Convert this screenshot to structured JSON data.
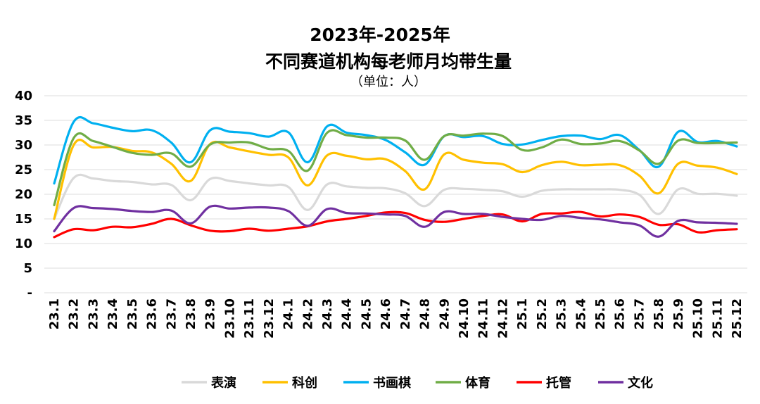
{
  "chart_data": {
    "type": "line",
    "title": "2023年-2025年",
    "title_line2": "不同赛道机构每老师月均带生量",
    "subtitle": "（单位：人）",
    "xlabel": "",
    "ylabel": "",
    "ylim": [
      0,
      40
    ],
    "yticks": [
      "-",
      "5",
      "10",
      "15",
      "20",
      "25",
      "30",
      "35",
      "40"
    ],
    "grid": "horizontal",
    "legend_position": "bottom",
    "smooth": true,
    "categories": [
      "23.1",
      "23.2",
      "23.3",
      "23.4",
      "23.5",
      "23.6",
      "23.7",
      "23.8",
      "23.9",
      "23.10",
      "23.11",
      "23.12",
      "24.1",
      "24.2",
      "24.3",
      "24.4",
      "24.5",
      "24.6",
      "24.7",
      "24.8",
      "24.9",
      "24.10",
      "24.11",
      "24.12",
      "25.1",
      "25.2",
      "25.3",
      "25.4",
      "25.5",
      "25.6",
      "25.7",
      "25.8",
      "25.9",
      "25.10",
      "25.11",
      "25.12"
    ],
    "series": [
      {
        "name": "表演",
        "color": "#d9d9d9",
        "values": [
          15,
          23.3,
          23.2,
          22.7,
          22.5,
          22,
          21.9,
          18.8,
          23.1,
          22.7,
          22.2,
          21.8,
          21.5,
          16.8,
          22,
          21.6,
          21.3,
          21.2,
          20.2,
          17.6,
          20.9,
          21.1,
          20.9,
          20.6,
          19.5,
          20.7,
          21,
          21,
          21,
          20.9,
          19.9,
          16,
          21,
          20.1,
          20.1,
          19.7
        ]
      },
      {
        "name": "科创",
        "color": "#ffc000",
        "values": [
          15,
          30,
          29.5,
          29.6,
          28.8,
          28.5,
          26.2,
          22.7,
          30.2,
          29.5,
          28.7,
          28,
          27.5,
          21.8,
          27.9,
          27.8,
          27.1,
          27.1,
          24.7,
          21,
          28.1,
          27,
          26.4,
          26.1,
          24.5,
          25.9,
          26.6,
          25.9,
          26,
          25.9,
          23.8,
          20.2,
          26.2,
          25.8,
          25.4,
          24.1
        ]
      },
      {
        "name": "书画棋",
        "color": "#00b0f0",
        "values": [
          22.2,
          34.7,
          34.4,
          33.5,
          32.8,
          33,
          30.5,
          26.5,
          33,
          32.7,
          32.4,
          31.7,
          32.6,
          26.5,
          33.8,
          32.5,
          32,
          31,
          28.5,
          26,
          31.8,
          31.6,
          31.8,
          30.2,
          30.1,
          31,
          31.8,
          31.9,
          31.2,
          32,
          29,
          25.6,
          32.7,
          30.6,
          30.8,
          29.7
        ]
      },
      {
        "name": "体育",
        "color": "#70ad47",
        "values": [
          17.8,
          31.4,
          30.8,
          29.6,
          28.4,
          28,
          28.3,
          25.6,
          30.1,
          30.5,
          30.5,
          29.2,
          28.8,
          24.8,
          32.5,
          32,
          31.5,
          31.5,
          30.9,
          27,
          31.8,
          31.9,
          32.3,
          31.8,
          29,
          29.5,
          31.1,
          30.2,
          30.3,
          30.8,
          28.9,
          26.2,
          30.9,
          30.4,
          30.4,
          30.5
        ]
      },
      {
        "name": "托管",
        "color": "#ff0000",
        "values": [
          11.3,
          12.9,
          12.7,
          13.4,
          13.3,
          14,
          15,
          13.7,
          12.6,
          12.5,
          13,
          12.6,
          13,
          13.5,
          14.5,
          15,
          15.6,
          16.3,
          16.2,
          14.8,
          14.4,
          15,
          15.6,
          15.9,
          14.5,
          16,
          16.1,
          16.4,
          15.5,
          15.9,
          15.4,
          13.8,
          13.9,
          12.3,
          12.7,
          12.9
        ]
      },
      {
        "name": "文化",
        "color": "#7030a0",
        "values": [
          12.5,
          17.2,
          17.2,
          17,
          16.6,
          16.4,
          16.7,
          14.1,
          17.5,
          17.1,
          17.3,
          17.3,
          16.6,
          13.6,
          17,
          16.2,
          16.1,
          15.9,
          15.6,
          13.4,
          16.4,
          16,
          16,
          15.4,
          15,
          14.8,
          15.6,
          15.2,
          14.9,
          14.3,
          13.7,
          11.4,
          14.6,
          14.3,
          14.2,
          14
        ]
      }
    ]
  }
}
